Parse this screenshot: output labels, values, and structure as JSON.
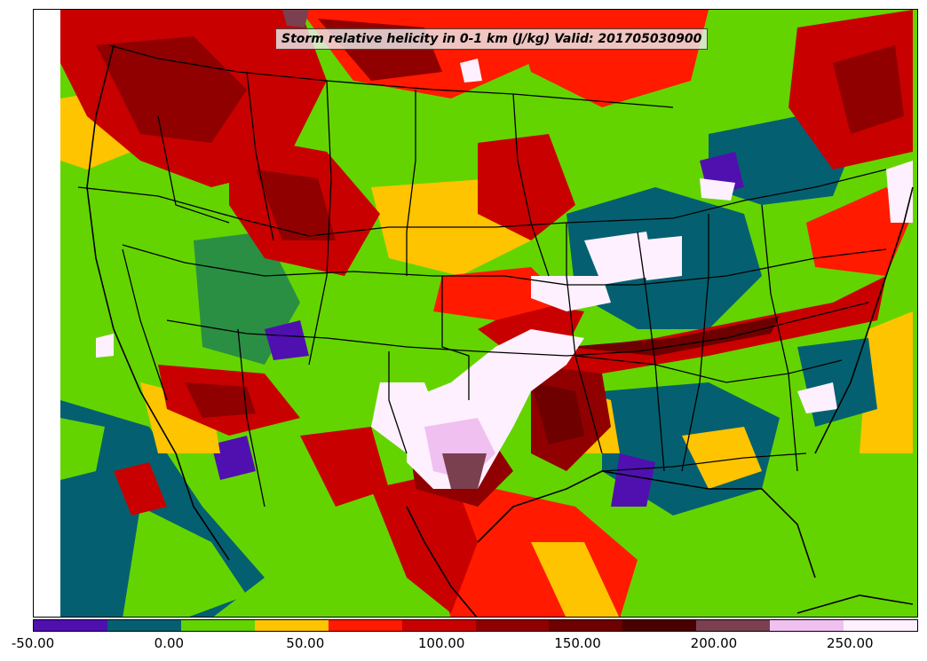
{
  "title": "Storm relative helicity in 0-1 km (J/kg) Valid: 201705030900",
  "colorbar": {
    "colors": [
      "#5010b0",
      "#046070",
      "#64d400",
      "#ffc400",
      "#ff1a00",
      "#c80000",
      "#900000",
      "#6e0000",
      "#4a0000",
      "#7a4050",
      "#f0c0f0",
      "#fff0ff"
    ],
    "ticks": [
      "-50.00",
      "0.00",
      "50.00",
      "100.00",
      "150.00",
      "200.00",
      "250.00"
    ]
  },
  "map": {
    "background_color": "#64d400",
    "boundary_color": "#000000"
  }
}
